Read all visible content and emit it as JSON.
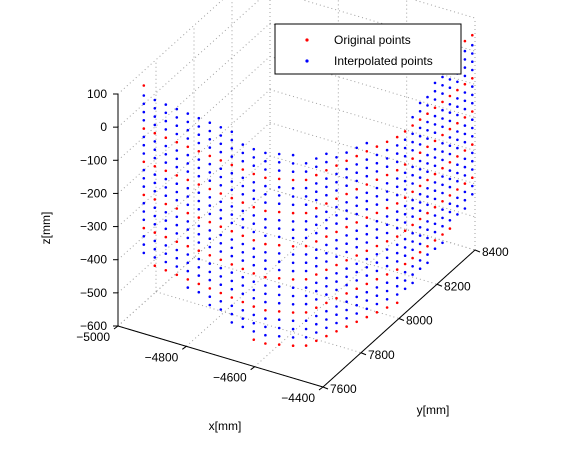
{
  "chart_data": {
    "type": "scatter",
    "projection": "3d",
    "xlabel": "x[mm]",
    "ylabel": "y[mm]",
    "zlabel": "z[mm]",
    "xlim": [
      -5000,
      -4400
    ],
    "ylim": [
      7600,
      8400
    ],
    "zlim": [
      -600,
      100
    ],
    "x_ticks": [
      -5000,
      -4800,
      -4600,
      -4400
    ],
    "x_tick_labels": [
      "−5000",
      "−4800",
      "−4600",
      "−4400"
    ],
    "y_ticks": [
      7600,
      7800,
      8000,
      8200,
      8400
    ],
    "y_tick_labels": [
      "7600",
      "7800",
      "8000",
      "8200",
      "8400"
    ],
    "z_ticks": [
      -600,
      -500,
      -400,
      -300,
      -200,
      -100,
      0,
      100
    ],
    "z_tick_labels": [
      "−600",
      "−500",
      "−400",
      "−300",
      "−200",
      "−100",
      "0",
      "100"
    ],
    "grid": true,
    "legend_position": "top-right",
    "series": [
      {
        "name": "Original points",
        "color": "#ff0000",
        "marker": "dot",
        "z_levels": [
          -550,
          -450,
          -350,
          -250,
          -150,
          -50,
          80
        ]
      },
      {
        "name": "Interpolated points",
        "color": "#0000ff",
        "marker": "dot",
        "z_levels": [
          -525,
          -500,
          -475,
          -425,
          -400,
          -375,
          -325,
          -300,
          -275,
          -225,
          -200,
          -175,
          -125,
          -100,
          -75,
          -25,
          0,
          25,
          50
        ]
      }
    ],
    "surface": {
      "description_units": "mm",
      "path_xy": [
        [
          -4980,
          7700
        ],
        [
          -4600,
          7640
        ],
        [
          -4500,
          7680
        ],
        [
          -4400,
          8000
        ],
        [
          -4380,
          8350
        ]
      ],
      "z_bottom_by_path": [
        -440,
        -560,
        -590,
        -560,
        -420
      ],
      "z_top_by_path": [
        80,
        40,
        20,
        -40,
        100
      ]
    }
  }
}
